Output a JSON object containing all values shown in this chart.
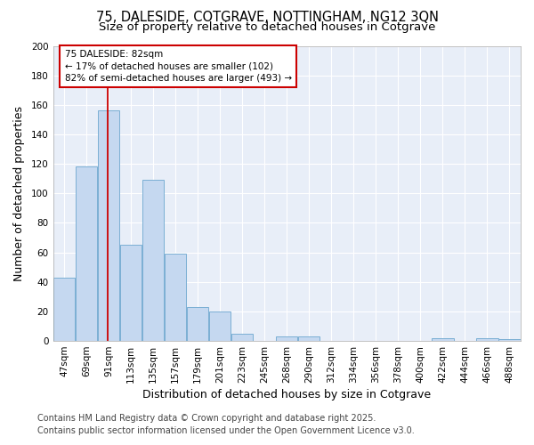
{
  "title_line1": "75, DALESIDE, COTGRAVE, NOTTINGHAM, NG12 3QN",
  "title_line2": "Size of property relative to detached houses in Cotgrave",
  "xlabel": "Distribution of detached houses by size in Cotgrave",
  "ylabel": "Number of detached properties",
  "categories": [
    "47sqm",
    "69sqm",
    "91sqm",
    "113sqm",
    "135sqm",
    "157sqm",
    "179sqm",
    "201sqm",
    "223sqm",
    "245sqm",
    "268sqm",
    "290sqm",
    "312sqm",
    "334sqm",
    "356sqm",
    "378sqm",
    "400sqm",
    "422sqm",
    "444sqm",
    "466sqm",
    "488sqm"
  ],
  "values": [
    43,
    118,
    156,
    65,
    109,
    59,
    23,
    20,
    5,
    0,
    3,
    3,
    0,
    0,
    0,
    0,
    0,
    2,
    0,
    2,
    1
  ],
  "bar_color": "#c5d8f0",
  "bar_edge_color": "#7bafd4",
  "vline_x": 1.97,
  "vline_color": "#cc0000",
  "annotation_text": "75 DALESIDE: 82sqm\n← 17% of detached houses are smaller (102)\n82% of semi-detached houses are larger (493) →",
  "annotation_box_color": "#cc0000",
  "ylim": [
    0,
    200
  ],
  "yticks": [
    0,
    20,
    40,
    60,
    80,
    100,
    120,
    140,
    160,
    180,
    200
  ],
  "fig_background": "#ffffff",
  "plot_background": "#e8eef8",
  "grid_color": "#ffffff",
  "footer_line1": "Contains HM Land Registry data © Crown copyright and database right 2025.",
  "footer_line2": "Contains public sector information licensed under the Open Government Licence v3.0.",
  "title_fontsize": 10.5,
  "subtitle_fontsize": 9.5,
  "axis_label_fontsize": 9,
  "tick_fontsize": 7.5,
  "footer_fontsize": 7
}
